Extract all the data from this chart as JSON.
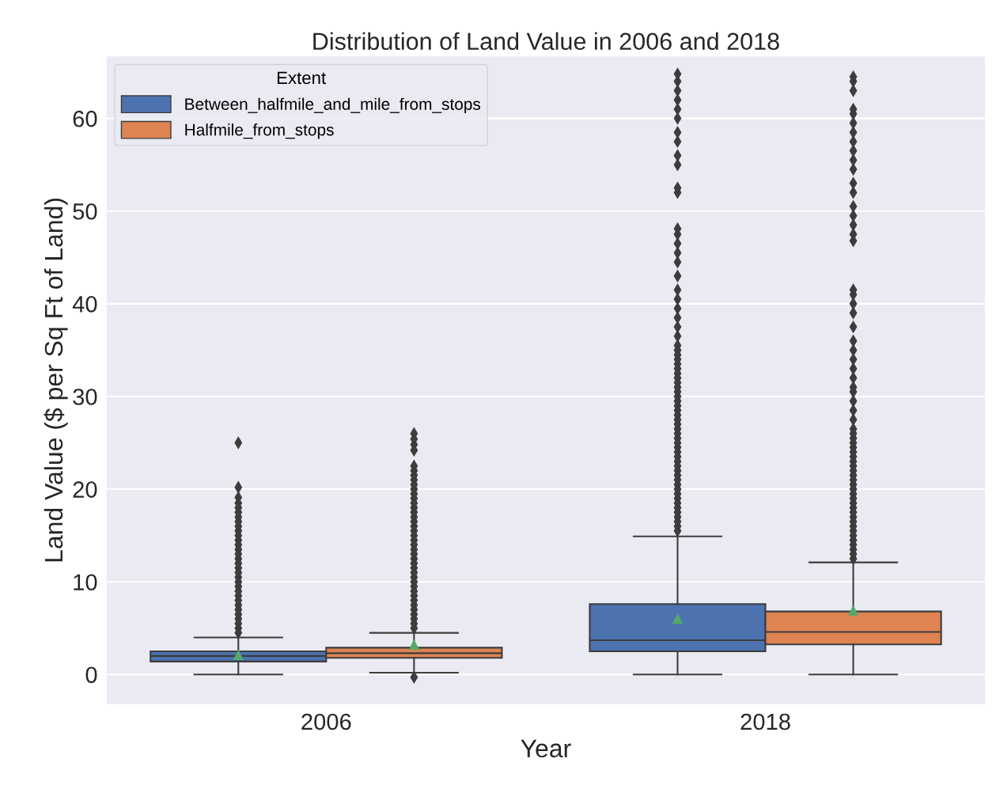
{
  "chart_data": {
    "type": "box",
    "title": "Distribution of Land Value in 2006 and 2018",
    "xlabel": "Year",
    "ylabel": "Land Value ($ per Sq Ft of Land)",
    "legend_title": "Extent",
    "legend": "top left",
    "grid": "y",
    "categories": [
      "2006",
      "2018"
    ],
    "ylim": [
      -3.2,
      66.7
    ],
    "yticks": [
      0,
      10,
      20,
      30,
      40,
      50,
      60
    ],
    "series": [
      {
        "name": "Between_halfmile_and_mile_from_stops",
        "color": "#4c72b0",
        "boxes": [
          {
            "low": 0,
            "q1": 1.4,
            "median": 2.0,
            "q3": 2.5,
            "high": 4.0,
            "mean": 2.1,
            "outliers": [
              4.5,
              5,
              5.5,
              6,
              6.5,
              7,
              7.5,
              8,
              8.5,
              9,
              9.5,
              10,
              10.5,
              11,
              11.5,
              12,
              12.5,
              13,
              13.5,
              14,
              14.5,
              15,
              15.5,
              16,
              16.5,
              17,
              17.5,
              18,
              18.5,
              19.1,
              20.2,
              25.0
            ]
          },
          {
            "low": 0,
            "q1": 2.5,
            "median": 3.7,
            "q3": 7.6,
            "high": 14.9,
            "mean": 6.0,
            "outliers": [
              15.5,
              16,
              16.5,
              17,
              17.5,
              18,
              18.5,
              19,
              19.5,
              20,
              20.5,
              21,
              21.5,
              22,
              22.5,
              23,
              23.5,
              24,
              24.5,
              25,
              25.5,
              26,
              26.5,
              27,
              27.5,
              28,
              28.5,
              29,
              29.5,
              30,
              30.5,
              31,
              31.5,
              32,
              32.5,
              33,
              33.5,
              34,
              34.5,
              35,
              35.5,
              36.5,
              37.5,
              38.5,
              39.5,
              40.5,
              41.5,
              43,
              44.5,
              45.5,
              46.5,
              47.5,
              48.1,
              52.0,
              52.5,
              55,
              56,
              57.5,
              58.5,
              60,
              61,
              62,
              63,
              64,
              64.8
            ]
          }
        ]
      },
      {
        "name": "Halfmile_from_stops",
        "color": "#dd8452",
        "boxes": [
          {
            "low": 0.2,
            "q1": 1.8,
            "median": 2.3,
            "q3": 2.9,
            "high": 4.5,
            "mean": 3.2,
            "outliers": [
              -0.3,
              5,
              5.5,
              6,
              6.5,
              7,
              7.5,
              8,
              8.5,
              9,
              9.5,
              10,
              10.5,
              11,
              11.5,
              12,
              12.5,
              13,
              13.5,
              14,
              14.5,
              15,
              15.5,
              16,
              16.5,
              17,
              17.5,
              18,
              18.5,
              19,
              19.5,
              20,
              20.5,
              21,
              21.5,
              22,
              22.5,
              24.2,
              24.8,
              25.4,
              26.0
            ]
          },
          {
            "low": 0,
            "q1": 3.25,
            "median": 4.6,
            "q3": 6.8,
            "high": 12.1,
            "mean": 6.9,
            "outliers": [
              12.5,
              13,
              13.5,
              14,
              14.5,
              15,
              15.5,
              16,
              16.5,
              17,
              17.5,
              18,
              18.5,
              19,
              19.5,
              20,
              20.5,
              21,
              21.5,
              22,
              22.5,
              23,
              23.5,
              24,
              24.5,
              25,
              25.5,
              26,
              26.5,
              27.5,
              28.5,
              29.5,
              30.5,
              31,
              32,
              33,
              34,
              35,
              36,
              37.5,
              39,
              40,
              41,
              41.5,
              46.8,
              47.5,
              48.5,
              49.5,
              50.5,
              52,
              53,
              54.5,
              55.5,
              56.5,
              57.5,
              58.5,
              59.5,
              60.5,
              61,
              63,
              64,
              64.5
            ]
          }
        ]
      }
    ]
  }
}
